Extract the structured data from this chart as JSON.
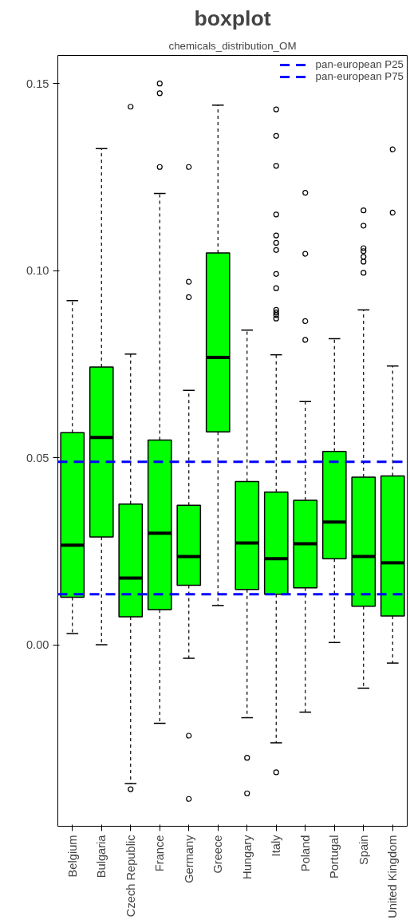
{
  "chart_data": {
    "type": "box",
    "title": "boxplot",
    "subtitle": "chemicals_distribution_OM",
    "categories": [
      "Belgium",
      "Bulgaria",
      "Czech Republic",
      "France",
      "Germany",
      "Greece",
      "Hungary",
      "Italy",
      "Poland",
      "Portugal",
      "Spain",
      "United Kingdom"
    ],
    "series": [
      {
        "color": "#00ff00",
        "boxes": [
          {
            "low": 0.003,
            "q1": 0.0127,
            "median": 0.0266,
            "q3": 0.0567,
            "high": 0.092
          },
          {
            "low": 0.0,
            "q1": 0.0288,
            "median": 0.0554,
            "q3": 0.0742,
            "high": 0.1326
          },
          {
            "low": -0.0371,
            "q1": 0.0075,
            "median": 0.0178,
            "q3": 0.0376,
            "high": 0.0777,
            "outliers": [
              0.1438,
              -0.0386
            ]
          },
          {
            "low": -0.021,
            "q1": 0.0094,
            "median": 0.0298,
            "q3": 0.0547,
            "high": 0.1206,
            "outliers": [
              0.15,
              0.1474,
              0.1277
            ]
          },
          {
            "low": -0.0036,
            "q1": 0.0159,
            "median": 0.0236,
            "q3": 0.0373,
            "high": 0.068,
            "outliers": [
              0.1277,
              0.097,
              0.0929,
              -0.0243,
              -0.0412
            ]
          },
          {
            "low": 0.0105,
            "q1": 0.0569,
            "median": 0.0768,
            "q3": 0.1047,
            "high": 0.1442
          },
          {
            "low": -0.0195,
            "q1": 0.0148,
            "median": 0.0272,
            "q3": 0.0436,
            "high": 0.0841,
            "outliers": [
              -0.0302,
              -0.0397
            ]
          },
          {
            "low": -0.0262,
            "q1": 0.0135,
            "median": 0.023,
            "q3": 0.0408,
            "high": 0.0775,
            "outliers": [
              0.1431,
              0.136,
              0.128,
              0.115,
              0.1094,
              0.1074,
              0.1055,
              0.0991,
              0.0953,
              0.0895,
              0.0888,
              0.0881,
              0.0872,
              -0.0341
            ]
          },
          {
            "low": -0.018,
            "q1": 0.0152,
            "median": 0.027,
            "q3": 0.0386,
            "high": 0.065,
            "outliers": [
              0.1208,
              0.1045,
              0.0865,
              0.0815
            ]
          },
          {
            "low": 0.0006,
            "q1": 0.023,
            "median": 0.0328,
            "q3": 0.0517,
            "high": 0.0818
          },
          {
            "low": -0.0116,
            "q1": 0.0103,
            "median": 0.0236,
            "q3": 0.0448,
            "high": 0.0895,
            "outliers": [
              0.1161,
              0.112,
              0.106,
              0.1052,
              0.1037,
              0.1024,
              0.0994
            ]
          },
          {
            "low": -0.0049,
            "q1": 0.0077,
            "median": 0.0219,
            "q3": 0.0451,
            "high": 0.0745,
            "outliers": [
              0.1324,
              0.1155
            ]
          }
        ]
      }
    ],
    "ref_lines": [
      {
        "axis": "y",
        "value": 0.0135,
        "label": "pan-european P25",
        "color": "#0000ff",
        "line_style": "dashed"
      },
      {
        "axis": "y",
        "value": 0.0489,
        "label": "pan-european P75",
        "color": "#0000ff",
        "line_style": "dashed"
      }
    ],
    "ylim": [
      -0.0485,
      0.1575
    ],
    "yticks": [
      {
        "value": 0,
        "label": "0.00"
      },
      {
        "value": 0.05,
        "label": "0.05"
      },
      {
        "value": 0.1,
        "label": "0.10"
      },
      0.15
    ],
    "grid": false,
    "legend": "top right"
  }
}
